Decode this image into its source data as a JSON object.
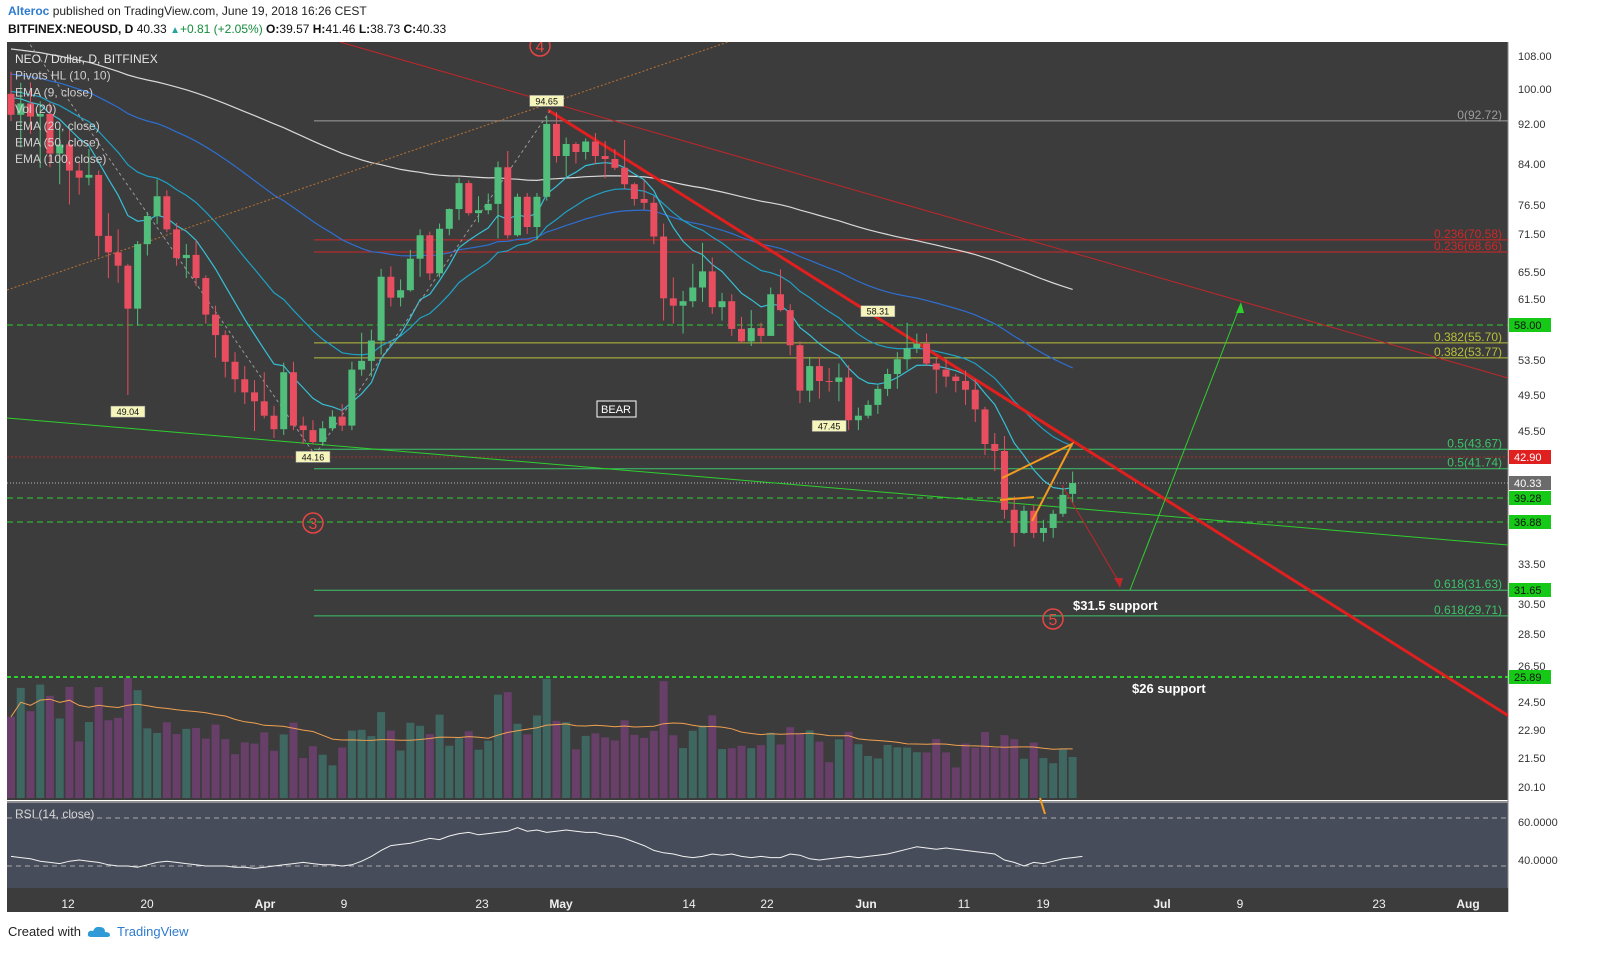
{
  "header": {
    "author": "Alteroc",
    "published": "published on TradingView.com, June 19, 2018 16:26 CEST",
    "symbol": "BITFINEX:NEOUSD, D",
    "last": "40.33",
    "change": "+0.81 (+2.05%)",
    "o_label": "O:",
    "o": "39.57",
    "h_label": "H:",
    "h": "41.46",
    "l_label": "L:",
    "l": "38.73",
    "c_label": "C:",
    "c": "40.33"
  },
  "footer": {
    "created": "Created with",
    "brand": "TradingView"
  },
  "colors": {
    "background": "#3c3c3c",
    "up": "#51bf7b",
    "down": "#e84e5f",
    "ema9": "#36c0d6",
    "ema20": "#1fa1c6",
    "ema50": "#2e6fd0",
    "ema100": "#d9d9d9",
    "trend": "#e01f1f",
    "support": "#2ed02e",
    "fib_gray": "#9e9e9e",
    "fib_red": "#d02727",
    "fib_olive": "#b8c03a",
    "fib_green": "#3cc46a"
  },
  "chart_data": {
    "type": "candlestick",
    "title": "NEO / Dollar, D, BITFINEX",
    "indicators": [
      "Pivots HL (10, 10)",
      "EMA (9, close)",
      "Vol (20)",
      "EMA (20, close)",
      "EMA (50, close)",
      "EMA (100, close)"
    ],
    "y_ticks": [
      "108.00",
      "100.00",
      "92.00",
      "84.00",
      "76.50",
      "71.50",
      "65.50",
      "61.50",
      "53.50",
      "49.50",
      "45.50",
      "40.33",
      "39.28",
      "36.88",
      "33.50",
      "30.50",
      "28.50",
      "26.50",
      "24.50",
      "22.90",
      "21.50",
      "20.10"
    ],
    "x_ticks": [
      "12",
      "20",
      "Apr",
      "9",
      "23",
      "May",
      "14",
      "22",
      "Jun",
      "11",
      "19",
      "Jul",
      "9",
      "23",
      "Aug"
    ],
    "last_close": 40.33,
    "candles": [
      {
        "o": 98.9,
        "h": 104.2,
        "l": 92.7,
        "c": 94.1
      },
      {
        "o": 94.1,
        "h": 101.5,
        "l": 87.3,
        "c": 96.7
      },
      {
        "o": 96.7,
        "h": 101.6,
        "l": 90.0,
        "c": 93.7
      },
      {
        "o": 93.7,
        "h": 97.2,
        "l": 83.3,
        "c": 94.3
      },
      {
        "o": 94.3,
        "h": 96.9,
        "l": 83.4,
        "c": 86.1
      },
      {
        "o": 86.1,
        "h": 91.3,
        "l": 80.3,
        "c": 87.9
      },
      {
        "o": 87.9,
        "h": 90.8,
        "l": 76.6,
        "c": 82.8
      },
      {
        "o": 82.8,
        "h": 84.3,
        "l": 78.4,
        "c": 81.5
      },
      {
        "o": 81.5,
        "h": 87.0,
        "l": 80.1,
        "c": 82.0
      },
      {
        "o": 82.0,
        "h": 82.8,
        "l": 67.9,
        "c": 71.2
      },
      {
        "o": 71.2,
        "h": 75.1,
        "l": 64.6,
        "c": 68.6
      },
      {
        "o": 68.6,
        "h": 72.3,
        "l": 63.9,
        "c": 66.5
      },
      {
        "o": 66.5,
        "h": 66.8,
        "l": 49.5,
        "c": 60.2
      },
      {
        "o": 60.2,
        "h": 70.4,
        "l": 57.9,
        "c": 69.9
      },
      {
        "o": 69.9,
        "h": 75.3,
        "l": 68.1,
        "c": 74.6
      },
      {
        "o": 74.6,
        "h": 81.2,
        "l": 73.2,
        "c": 78.1
      },
      {
        "o": 78.1,
        "h": 79.2,
        "l": 71.8,
        "c": 72.3
      },
      {
        "o": 72.3,
        "h": 73.4,
        "l": 66.5,
        "c": 67.7
      },
      {
        "o": 67.7,
        "h": 69.9,
        "l": 64.6,
        "c": 68.2
      },
      {
        "o": 68.2,
        "h": 70.5,
        "l": 63.4,
        "c": 64.6
      },
      {
        "o": 64.6,
        "h": 65.0,
        "l": 58.2,
        "c": 59.4
      },
      {
        "o": 59.4,
        "h": 60.6,
        "l": 53.8,
        "c": 56.7
      },
      {
        "o": 56.7,
        "h": 57.3,
        "l": 51.5,
        "c": 53.3
      },
      {
        "o": 53.3,
        "h": 54.5,
        "l": 49.8,
        "c": 51.3
      },
      {
        "o": 51.3,
        "h": 52.8,
        "l": 48.5,
        "c": 49.8
      },
      {
        "o": 49.8,
        "h": 51.2,
        "l": 45.5,
        "c": 48.8
      },
      {
        "o": 48.8,
        "h": 52.1,
        "l": 46.9,
        "c": 47.2
      },
      {
        "o": 47.2,
        "h": 48.3,
        "l": 44.8,
        "c": 45.7
      },
      {
        "o": 45.7,
        "h": 53.2,
        "l": 45.1,
        "c": 52.1
      },
      {
        "o": 52.1,
        "h": 53.3,
        "l": 45.6,
        "c": 46.1
      },
      {
        "o": 46.1,
        "h": 47.1,
        "l": 44.2,
        "c": 45.6
      },
      {
        "o": 45.6,
        "h": 46.7,
        "l": 44.2,
        "c": 44.4
      },
      {
        "o": 44.4,
        "h": 46.6,
        "l": 44.0,
        "c": 45.8
      },
      {
        "o": 45.8,
        "h": 47.8,
        "l": 45.5,
        "c": 47.1
      },
      {
        "o": 47.1,
        "h": 48.5,
        "l": 45.5,
        "c": 46.1
      },
      {
        "o": 46.1,
        "h": 53.3,
        "l": 45.6,
        "c": 52.4
      },
      {
        "o": 52.4,
        "h": 57.0,
        "l": 51.7,
        "c": 53.4
      },
      {
        "o": 53.4,
        "h": 57.4,
        "l": 51.6,
        "c": 56.0
      },
      {
        "o": 56.0,
        "h": 66.0,
        "l": 54.2,
        "c": 64.8
      },
      {
        "o": 64.8,
        "h": 66.4,
        "l": 60.5,
        "c": 61.7
      },
      {
        "o": 61.7,
        "h": 64.4,
        "l": 60.5,
        "c": 62.8
      },
      {
        "o": 62.8,
        "h": 69.0,
        "l": 62.6,
        "c": 67.6
      },
      {
        "o": 67.6,
        "h": 72.3,
        "l": 64.8,
        "c": 71.3
      },
      {
        "o": 71.3,
        "h": 71.9,
        "l": 64.3,
        "c": 65.3
      },
      {
        "o": 65.3,
        "h": 73.3,
        "l": 64.7,
        "c": 72.4
      },
      {
        "o": 72.4,
        "h": 75.9,
        "l": 71.3,
        "c": 75.8
      },
      {
        "o": 75.8,
        "h": 81.5,
        "l": 73.9,
        "c": 80.5
      },
      {
        "o": 80.5,
        "h": 81.0,
        "l": 74.7,
        "c": 75.1
      },
      {
        "o": 75.1,
        "h": 78.1,
        "l": 73.5,
        "c": 75.6
      },
      {
        "o": 75.6,
        "h": 78.6,
        "l": 74.9,
        "c": 76.7
      },
      {
        "o": 76.7,
        "h": 84.5,
        "l": 70.8,
        "c": 83.4
      },
      {
        "o": 83.4,
        "h": 86.6,
        "l": 70.8,
        "c": 71.3
      },
      {
        "o": 71.3,
        "h": 78.6,
        "l": 71.1,
        "c": 78.0
      },
      {
        "o": 78.0,
        "h": 78.7,
        "l": 71.5,
        "c": 72.7
      },
      {
        "o": 72.7,
        "h": 78.7,
        "l": 70.6,
        "c": 78.0
      },
      {
        "o": 78.0,
        "h": 93.7,
        "l": 77.3,
        "c": 92.0
      },
      {
        "o": 92.0,
        "h": 94.7,
        "l": 84.3,
        "c": 85.6
      },
      {
        "o": 85.6,
        "h": 89.3,
        "l": 81.7,
        "c": 88.0
      },
      {
        "o": 88.0,
        "h": 88.4,
        "l": 84.1,
        "c": 86.4
      },
      {
        "o": 86.4,
        "h": 89.1,
        "l": 84.9,
        "c": 88.5
      },
      {
        "o": 88.5,
        "h": 90.2,
        "l": 83.9,
        "c": 85.6
      },
      {
        "o": 85.6,
        "h": 88.6,
        "l": 81.4,
        "c": 85.0
      },
      {
        "o": 85.0,
        "h": 87.0,
        "l": 82.9,
        "c": 83.3
      },
      {
        "o": 83.3,
        "h": 88.8,
        "l": 79.4,
        "c": 80.3
      },
      {
        "o": 80.3,
        "h": 80.6,
        "l": 76.4,
        "c": 77.6
      },
      {
        "o": 77.6,
        "h": 81.0,
        "l": 75.7,
        "c": 76.9
      },
      {
        "o": 76.9,
        "h": 78.1,
        "l": 69.9,
        "c": 71.1
      },
      {
        "o": 71.1,
        "h": 73.3,
        "l": 58.6,
        "c": 61.6
      },
      {
        "o": 61.6,
        "h": 64.7,
        "l": 58.2,
        "c": 60.6
      },
      {
        "o": 60.6,
        "h": 62.7,
        "l": 56.9,
        "c": 61.2
      },
      {
        "o": 61.2,
        "h": 66.8,
        "l": 60.4,
        "c": 63.2
      },
      {
        "o": 63.2,
        "h": 70.1,
        "l": 61.1,
        "c": 65.6
      },
      {
        "o": 65.6,
        "h": 67.8,
        "l": 59.5,
        "c": 60.4
      },
      {
        "o": 60.4,
        "h": 62.4,
        "l": 58.6,
        "c": 61.2
      },
      {
        "o": 61.2,
        "h": 62.2,
        "l": 56.6,
        "c": 57.5
      },
      {
        "o": 57.5,
        "h": 59.1,
        "l": 55.6,
        "c": 55.9
      },
      {
        "o": 55.9,
        "h": 60.0,
        "l": 55.3,
        "c": 57.6
      },
      {
        "o": 57.6,
        "h": 58.3,
        "l": 55.6,
        "c": 56.6
      },
      {
        "o": 56.6,
        "h": 63.2,
        "l": 56.6,
        "c": 62.2
      },
      {
        "o": 62.2,
        "h": 65.9,
        "l": 59.8,
        "c": 60.0
      },
      {
        "o": 60.0,
        "h": 60.8,
        "l": 54.1,
        "c": 55.4
      },
      {
        "o": 55.4,
        "h": 55.9,
        "l": 48.6,
        "c": 50.0
      },
      {
        "o": 50.0,
        "h": 53.9,
        "l": 48.7,
        "c": 52.8
      },
      {
        "o": 52.8,
        "h": 53.9,
        "l": 49.1,
        "c": 51.1
      },
      {
        "o": 51.1,
        "h": 52.6,
        "l": 49.9,
        "c": 51.0
      },
      {
        "o": 51.0,
        "h": 53.1,
        "l": 48.8,
        "c": 51.5
      },
      {
        "o": 51.5,
        "h": 52.9,
        "l": 45.6,
        "c": 46.7
      },
      {
        "o": 46.7,
        "h": 48.1,
        "l": 45.6,
        "c": 47.2
      },
      {
        "o": 47.2,
        "h": 48.9,
        "l": 46.9,
        "c": 48.4
      },
      {
        "o": 48.4,
        "h": 50.6,
        "l": 47.4,
        "c": 50.2
      },
      {
        "o": 50.2,
        "h": 52.5,
        "l": 49.4,
        "c": 51.9
      },
      {
        "o": 51.9,
        "h": 54.5,
        "l": 50.2,
        "c": 53.6
      },
      {
        "o": 53.6,
        "h": 58.3,
        "l": 52.4,
        "c": 55.0
      },
      {
        "o": 55.0,
        "h": 56.9,
        "l": 54.4,
        "c": 55.6
      },
      {
        "o": 55.6,
        "h": 56.9,
        "l": 52.8,
        "c": 53.1
      },
      {
        "o": 53.1,
        "h": 53.7,
        "l": 49.7,
        "c": 52.4
      },
      {
        "o": 52.4,
        "h": 53.6,
        "l": 50.4,
        "c": 51.6
      },
      {
        "o": 51.6,
        "h": 51.9,
        "l": 49.8,
        "c": 51.1
      },
      {
        "o": 51.1,
        "h": 52.3,
        "l": 48.4,
        "c": 50.1
      },
      {
        "o": 50.1,
        "h": 51.3,
        "l": 46.5,
        "c": 47.9
      },
      {
        "o": 47.9,
        "h": 48.2,
        "l": 43.1,
        "c": 44.2
      },
      {
        "o": 44.2,
        "h": 45.3,
        "l": 41.5,
        "c": 43.5
      },
      {
        "o": 43.5,
        "h": 45.0,
        "l": 37.2,
        "c": 38.1
      },
      {
        "o": 38.1,
        "h": 39.4,
        "l": 34.9,
        "c": 36.0
      },
      {
        "o": 36.0,
        "h": 38.5,
        "l": 35.9,
        "c": 38.0
      },
      {
        "o": 38.0,
        "h": 38.6,
        "l": 35.6,
        "c": 36.0
      },
      {
        "o": 36.0,
        "h": 37.1,
        "l": 35.3,
        "c": 36.4
      },
      {
        "o": 36.4,
        "h": 38.1,
        "l": 35.6,
        "c": 37.7
      },
      {
        "o": 37.7,
        "h": 40.0,
        "l": 37.4,
        "c": 39.5
      },
      {
        "o": 39.57,
        "h": 41.46,
        "l": 38.73,
        "c": 40.33
      }
    ],
    "volume_ma_note": "Vol (20)",
    "fib_levels": [
      {
        "label": "0(92.72)",
        "value": 92.72,
        "color": "gray"
      },
      {
        "label": "0.236(70.58)",
        "value": 70.58,
        "color": "red"
      },
      {
        "label": "0.236(68.66)",
        "value": 68.66,
        "color": "red"
      },
      {
        "label": "0.382(55.70)",
        "value": 55.7,
        "color": "olive"
      },
      {
        "label": "0.382(53.77)",
        "value": 53.77,
        "color": "olive"
      },
      {
        "label": "0.5(43.67)",
        "value": 43.67,
        "color": "green"
      },
      {
        "label": "0.5(41.74)",
        "value": 41.74,
        "color": "green"
      },
      {
        "label": "0.618(31.63)",
        "value": 31.63,
        "color": "green"
      },
      {
        "label": "0.618(29.71)",
        "value": 29.71,
        "color": "green"
      }
    ],
    "price_badges": [
      {
        "label": "58.00",
        "value": 58.0,
        "kind": "green"
      },
      {
        "label": "42.90",
        "value": 42.9,
        "kind": "red"
      },
      {
        "label": "40.33",
        "value": 40.33,
        "kind": "gray"
      },
      {
        "label": "39.28",
        "value": 39.28,
        "kind": "green"
      },
      {
        "label": "36.88",
        "value": 36.88,
        "kind": "green"
      },
      {
        "label": "31.65",
        "value": 31.65,
        "kind": "green"
      },
      {
        "label": "25.89",
        "value": 25.89,
        "kind": "green"
      }
    ],
    "pivots": [
      {
        "label": "94.65",
        "value": 94.65,
        "kind": "high"
      },
      {
        "label": "58.31",
        "value": 58.31,
        "kind": "high"
      },
      {
        "label": "49.04",
        "value": 49.04,
        "kind": "low"
      },
      {
        "label": "44.16",
        "value": 44.16,
        "kind": "low"
      },
      {
        "label": "47.45",
        "value": 47.45,
        "kind": "low"
      }
    ],
    "annotations": {
      "bear": "BEAR",
      "wave3": "3",
      "wave4": "4",
      "wave5": "5",
      "support1": "$31.5 support",
      "support2": "$26 support"
    },
    "rsi": {
      "title": "RSI (14, close)",
      "ticks": [
        "60.0000",
        "40.0000"
      ],
      "values": [
        38,
        37,
        36,
        34,
        33,
        32,
        34,
        35,
        34,
        33,
        31,
        30,
        30,
        29,
        31,
        33,
        34,
        33,
        32,
        31,
        30,
        30,
        30,
        29,
        29,
        28,
        29,
        30,
        31,
        32,
        33,
        32,
        31,
        31,
        30,
        31,
        34,
        38,
        43,
        47,
        48,
        49,
        51,
        53,
        52,
        55,
        57,
        58,
        56,
        57,
        58,
        59,
        62,
        59,
        60,
        58,
        59,
        60,
        59,
        58,
        58,
        56,
        55,
        53,
        50,
        47,
        43,
        41,
        40,
        38,
        37,
        38,
        40,
        39,
        40,
        38,
        37,
        38,
        37,
        37,
        40,
        39,
        36,
        35,
        36,
        37,
        38,
        37,
        38,
        39,
        40,
        42,
        44,
        46,
        45,
        44,
        45,
        44,
        43,
        42,
        41,
        40,
        35,
        33,
        30,
        33,
        32,
        34,
        36,
        37,
        38
      ]
    }
  }
}
